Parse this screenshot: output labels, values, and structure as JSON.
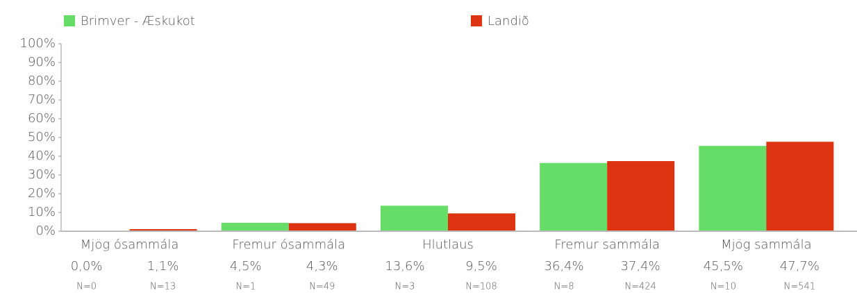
{
  "chart_data": {
    "type": "bar",
    "categories": [
      "Mjög ósammála",
      "Fremur ósammála",
      "Hlutlaus",
      "Fremur sammála",
      "Mjög sammála"
    ],
    "series": [
      {
        "name": "Brimver - Æskukot",
        "color": "#66dd66",
        "values": [
          0.0,
          4.5,
          13.6,
          36.4,
          45.5
        ],
        "value_labels": [
          "0,0%",
          "4,5%",
          "13,6%",
          "36,4%",
          "45,5%"
        ],
        "n_labels": [
          "N=0",
          "N=1",
          "N=3",
          "N=8",
          "N=10"
        ]
      },
      {
        "name": "Landið",
        "color": "#dd3311",
        "values": [
          1.1,
          4.3,
          9.5,
          37.4,
          47.7
        ],
        "value_labels": [
          "1,1%",
          "4,3%",
          "9,5%",
          "37,4%",
          "47,7%"
        ],
        "n_labels": [
          "N=13",
          "N=49",
          "N=108",
          "N=424",
          "N=541"
        ]
      }
    ],
    "ylim": [
      0,
      100
    ],
    "yticks": [
      {
        "value": 0,
        "label": "0%"
      },
      {
        "value": 10,
        "label": "10%"
      },
      {
        "value": 20,
        "label": "20%"
      },
      {
        "value": 30,
        "label": "30%"
      },
      {
        "value": 40,
        "label": "40%"
      },
      {
        "value": 50,
        "label": "50%"
      },
      {
        "value": 60,
        "label": "60%"
      },
      {
        "value": 70,
        "label": "70%"
      },
      {
        "value": 80,
        "label": "80%"
      },
      {
        "value": 90,
        "label": "90%"
      },
      {
        "value": 100,
        "label": "100%"
      }
    ],
    "grid": false
  }
}
